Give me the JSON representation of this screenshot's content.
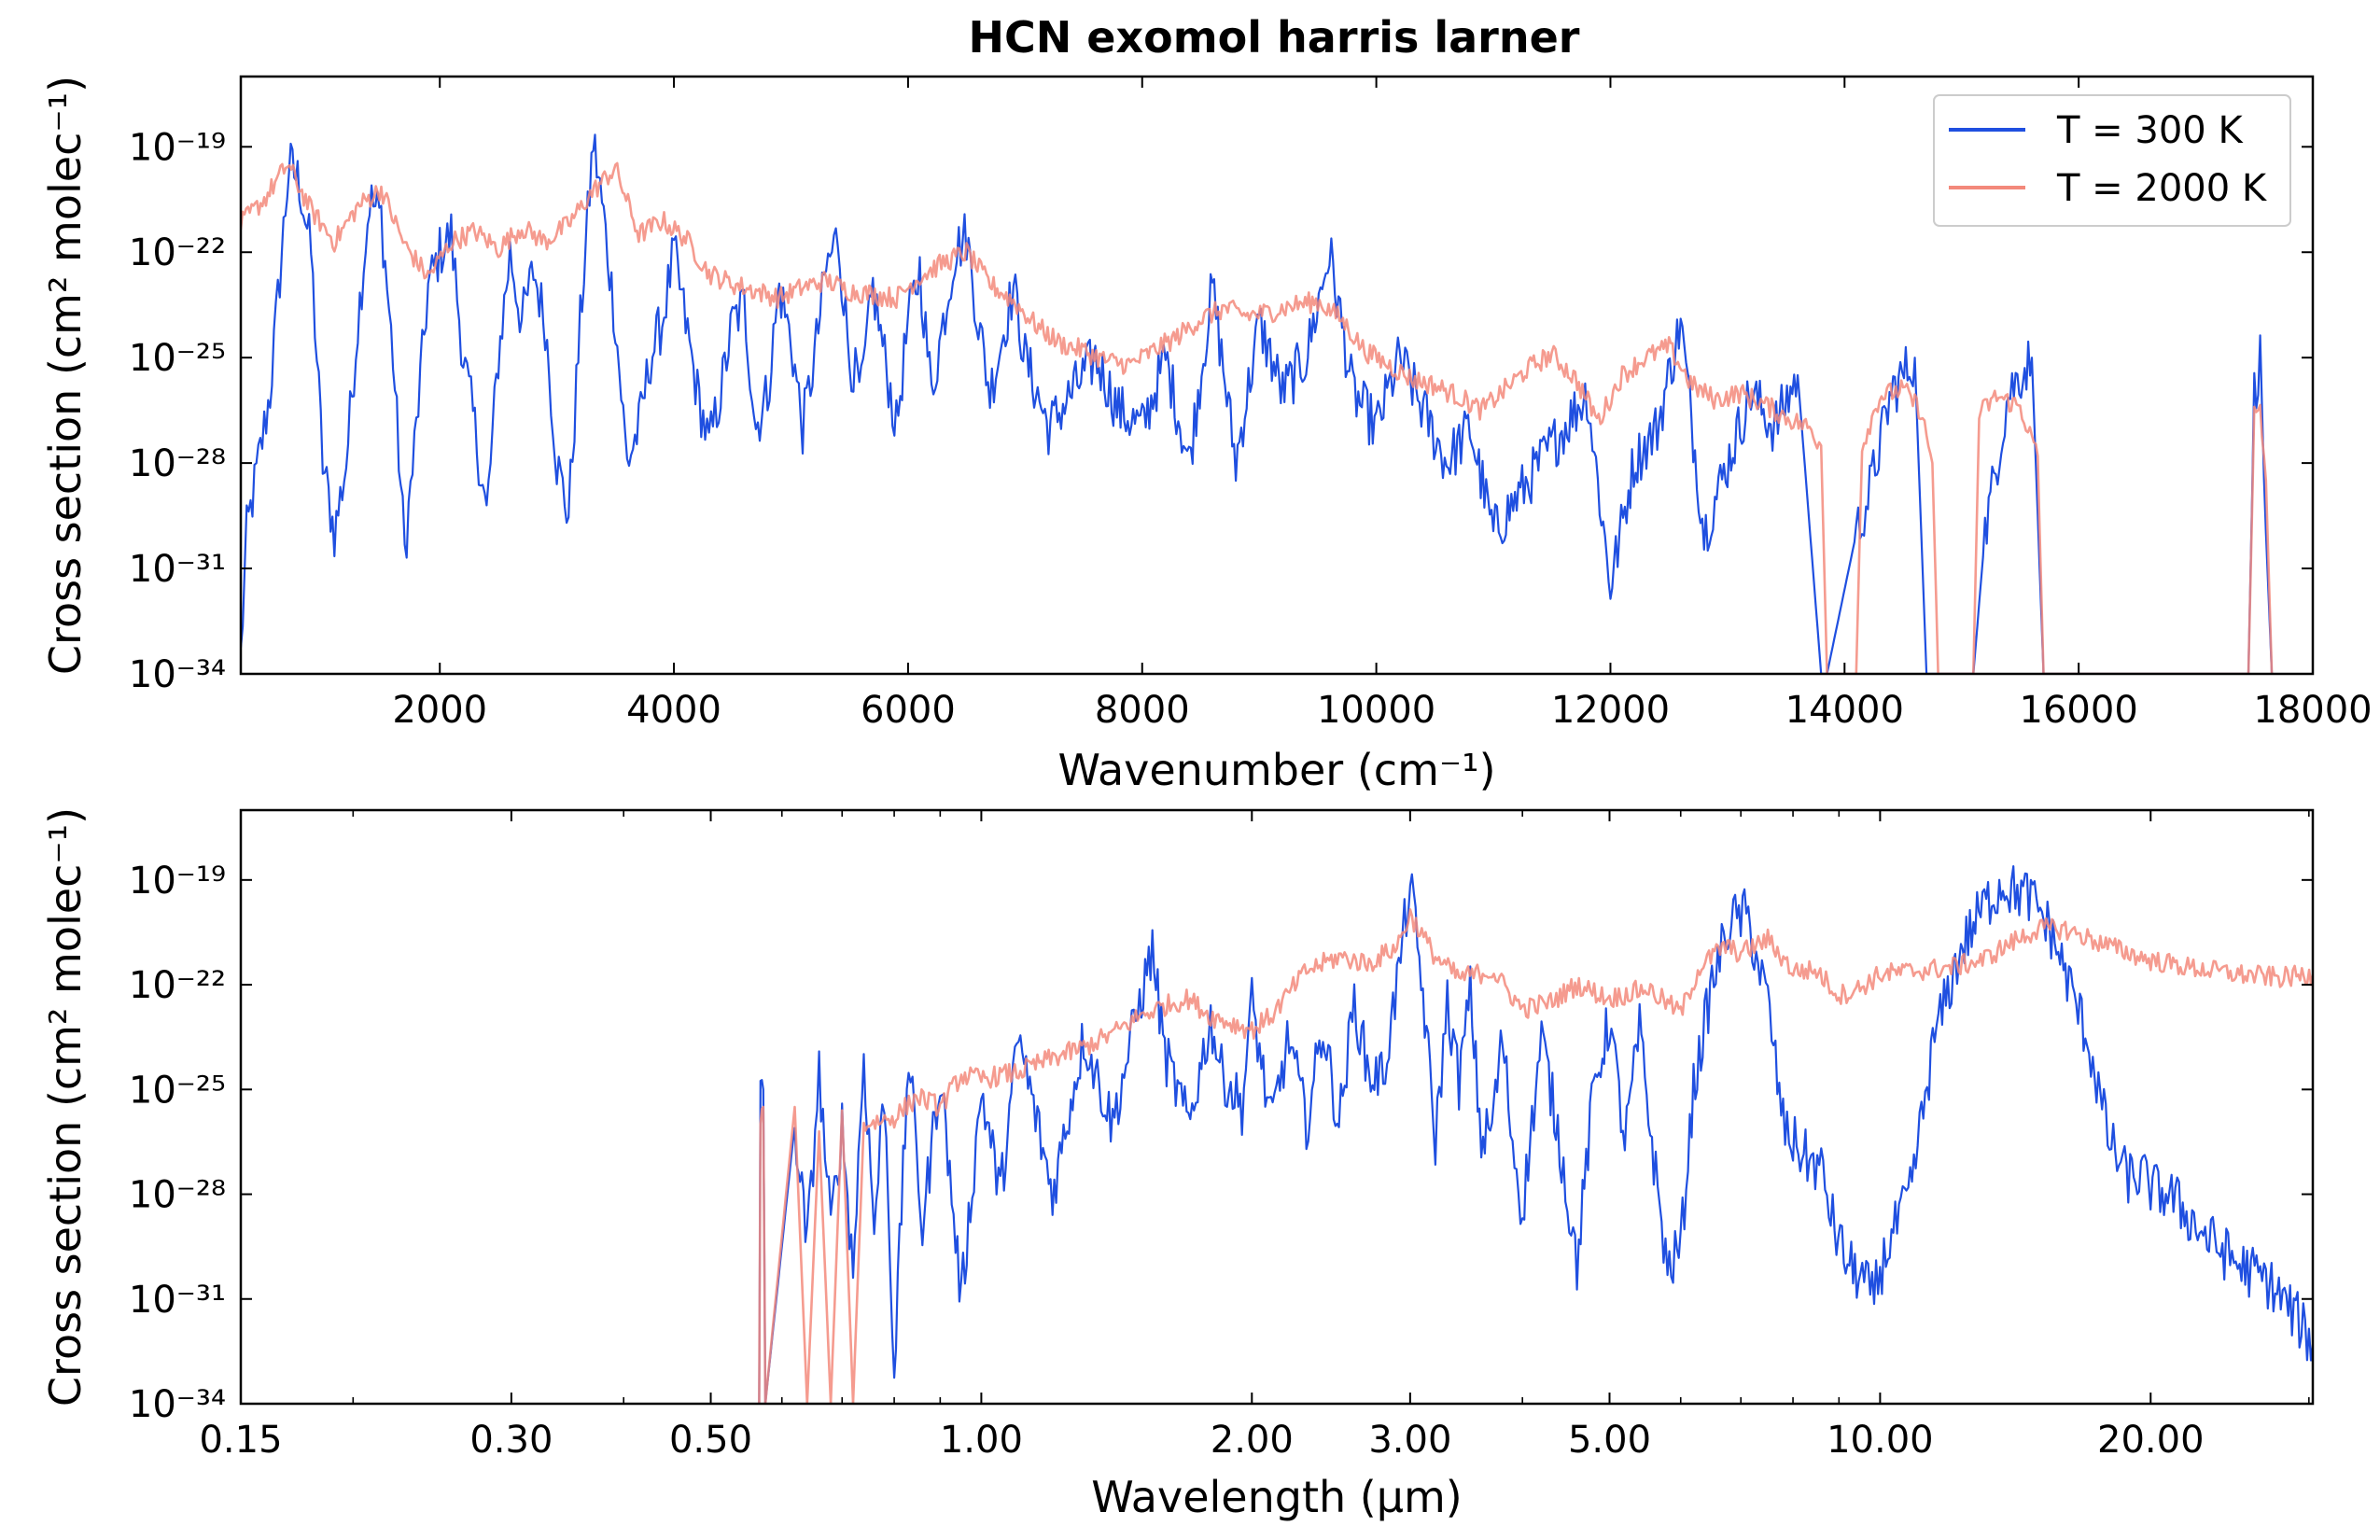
{
  "chart_data": [
    {
      "type": "line",
      "title": "HCN exomol harris larner",
      "xlabel": "Wavenumber (cm⁻¹)",
      "ylabel": "Cross section (cm² molec⁻¹)",
      "xscale": "linear",
      "yscale": "log",
      "xlim": [
        300,
        18000
      ],
      "ylim_exp": [
        -34,
        -17
      ],
      "x_ticks": [
        2000,
        4000,
        6000,
        8000,
        10000,
        12000,
        14000,
        16000,
        18000
      ],
      "x_tick_labels": [
        "2000",
        "4000",
        "6000",
        "8000",
        "10000",
        "12000",
        "14000",
        "16000",
        "18000"
      ],
      "y_ticks_exp": [
        -34,
        -31,
        -28,
        -25,
        -22,
        -19
      ],
      "y_tick_labels": [
        "10⁻³⁴",
        "10⁻³¹",
        "10⁻²⁸",
        "10⁻²⁵",
        "10⁻²²",
        "10⁻¹⁹"
      ],
      "legend": "top-right",
      "series": [
        {
          "name": "T = 300 K",
          "color": "#1f4fe0",
          "x": [
            300,
            350,
            450,
            550,
            650,
            712,
            800,
            900,
            1000,
            1100,
            1200,
            1300,
            1400,
            1500,
            1600,
            1700,
            1800,
            1900,
            2000,
            2097,
            2200,
            2300,
            2400,
            2500,
            2600,
            2700,
            2800,
            2900,
            3000,
            3100,
            3200,
            3311,
            3400,
            3500,
            3600,
            3700,
            3800,
            3900,
            4000,
            4100,
            4200,
            4300,
            4400,
            4500,
            4600,
            4700,
            4800,
            4900,
            5000,
            5100,
            5200,
            5300,
            5400,
            5500,
            5600,
            5700,
            5800,
            5900,
            6000,
            6100,
            6200,
            6300,
            6400,
            6500,
            6600,
            6700,
            6800,
            6900,
            7000,
            7200,
            7400,
            7600,
            7800,
            8000,
            8200,
            8400,
            8600,
            8800,
            9000,
            9200,
            9400,
            9600,
            9800,
            10000,
            10200,
            10400,
            10600,
            10800,
            11000,
            11200,
            11400,
            11600,
            11800,
            12000,
            12200,
            12400,
            12600,
            12800,
            13000,
            13200,
            13400,
            13600,
            13800,
            13850,
            14100,
            14200,
            14400,
            14600,
            14700,
            14800,
            15100,
            15200,
            15400,
            15600,
            15700,
            17450,
            17500,
            17550,
            17600,
            17650
          ],
          "y_exp": [
            -33.5,
            -30,
            -28,
            -26,
            -22,
            -19.5,
            -20,
            -22,
            -28,
            -30,
            -28,
            -24,
            -20.5,
            -21,
            -25,
            -30.5,
            -27,
            -23,
            -22,
            -21.5,
            -25,
            -27,
            -29.5,
            -25,
            -22,
            -24,
            -22.5,
            -24,
            -28,
            -29.5,
            -24,
            -18.8,
            -21,
            -24,
            -28,
            -27,
            -25,
            -24,
            -22,
            -24,
            -26,
            -27.5,
            -26,
            -24,
            -23.5,
            -27,
            -26,
            -23,
            -24.5,
            -27,
            -25,
            -22.5,
            -21.5,
            -25,
            -26,
            -23,
            -25,
            -27,
            -24,
            -22.5,
            -26,
            -24,
            -22,
            -21.5,
            -24,
            -26,
            -24.5,
            -23,
            -25,
            -27,
            -26,
            -25,
            -26.5,
            -27,
            -25,
            -28,
            -23,
            -28,
            -24,
            -26,
            -25,
            -22,
            -26,
            -27,
            -25,
            -26.5,
            -28,
            -27,
            -30,
            -29,
            -28,
            -27,
            -26,
            -31.5,
            -28,
            -27,
            -24,
            -30,
            -28,
            -26,
            -27,
            -25.5,
            -34,
            -34,
            -30,
            -29,
            -26,
            -25,
            -34,
            -34,
            -34,
            -30,
            -26,
            -25,
            -34,
            -34,
            -26,
            -25,
            -30,
            -34
          ]
        },
        {
          "name": "T = 2000 K",
          "color": "#f3897b",
          "x": [
            300,
            500,
            700,
            900,
            1100,
            1300,
            1500,
            1700,
            1900,
            2100,
            2300,
            2500,
            2700,
            2900,
            3100,
            3300,
            3500,
            3700,
            3900,
            4100,
            4300,
            4500,
            4700,
            4900,
            5100,
            5300,
            5500,
            5700,
            5900,
            6100,
            6300,
            6500,
            6700,
            6900,
            7100,
            7300,
            7500,
            7700,
            7900,
            8100,
            8300,
            8500,
            8700,
            8900,
            9100,
            9300,
            9500,
            9700,
            9900,
            10100,
            10300,
            10500,
            10700,
            10900,
            11100,
            11300,
            11500,
            11700,
            11900,
            12100,
            12300,
            12500,
            12700,
            12900,
            13100,
            13300,
            13500,
            13700,
            13800,
            13850,
            14100,
            14150,
            14300,
            14500,
            14650,
            14750,
            14800,
            15100,
            15150,
            15300,
            15500,
            15650,
            15700,
            17450,
            17500,
            17550,
            17600,
            17650
          ],
          "y_exp": [
            -21.2,
            -20.5,
            -19.5,
            -20.8,
            -21.7,
            -20.7,
            -20.2,
            -21.8,
            -22.7,
            -21.7,
            -21.4,
            -21.9,
            -21.3,
            -21.7,
            -21.2,
            -20.3,
            -19.6,
            -21.5,
            -21.1,
            -21.6,
            -22.6,
            -22.9,
            -23.1,
            -23.3,
            -23.0,
            -22.8,
            -23.1,
            -23.2,
            -23.3,
            -22.7,
            -22.3,
            -22.0,
            -22.9,
            -23.4,
            -24.1,
            -24.6,
            -24.8,
            -25.1,
            -25.2,
            -24.8,
            -24.4,
            -23.9,
            -23.6,
            -23.8,
            -23.7,
            -23.5,
            -23.4,
            -23.9,
            -24.8,
            -25.2,
            -25.6,
            -25.8,
            -26.1,
            -26.5,
            -25.9,
            -25.3,
            -24.9,
            -25.6,
            -26.8,
            -25.5,
            -25.0,
            -24.7,
            -25.8,
            -26.2,
            -26.0,
            -26.3,
            -26.7,
            -27.0,
            -27.5,
            -34,
            -34,
            -27.5,
            -26.1,
            -25.9,
            -26.5,
            -28.0,
            -34,
            -34,
            -26.6,
            -26.1,
            -26.4,
            -27.8,
            -34,
            -34,
            -26.6,
            -26.4,
            -28.5,
            -34
          ]
        }
      ]
    },
    {
      "type": "line",
      "xlabel": "Wavelength (μm)",
      "ylabel": "Cross section (cm² molec⁻¹)",
      "xscale": "log",
      "xlim": [
        0.15,
        30.3
      ],
      "ylim_exp": [
        -34,
        -17
      ],
      "x_ticks": [
        0.15,
        0.3,
        0.5,
        1.0,
        2.0,
        3.0,
        5.0,
        10.0,
        20.0
      ],
      "x_tick_labels": [
        "0.15",
        "0.30",
        "0.50",
        "1.00",
        "2.00",
        "3.00",
        "5.00",
        "10.00",
        "20.00"
      ],
      "y_ticks_exp": [
        -34,
        -31,
        -28,
        -25,
        -22,
        -19
      ],
      "y_tick_labels": [
        "10⁻³⁴",
        "10⁻³¹",
        "10⁻²⁸",
        "10⁻²⁵",
        "10⁻²²",
        "10⁻¹⁹"
      ],
      "series": [
        {
          "name": "T = 300 K",
          "color": "#1f4fe0",
          "x": [
            0.566,
            0.568,
            0.572,
            0.575,
            0.62,
            0.64,
            0.66,
            0.68,
            0.7,
            0.72,
            0.74,
            0.76,
            0.78,
            0.8,
            0.83,
            0.86,
            0.9,
            0.95,
            1.0,
            1.05,
            1.1,
            1.2,
            1.3,
            1.4,
            1.5,
            1.55,
            1.6,
            1.7,
            1.8,
            1.85,
            1.95,
            2.0,
            2.1,
            2.2,
            2.3,
            2.4,
            2.5,
            2.6,
            2.7,
            2.8,
            2.9,
            3.0,
            3.1,
            3.2,
            3.3,
            3.4,
            3.5,
            3.6,
            3.7,
            3.8,
            3.9,
            4.0,
            4.2,
            4.4,
            4.6,
            4.8,
            5.0,
            5.2,
            5.4,
            5.6,
            5.8,
            6.0,
            6.2,
            6.5,
            6.8,
            7.1,
            7.5,
            7.8,
            8.0,
            8.3,
            8.6,
            8.9,
            9.2,
            9.6,
            9.8,
            10.2,
            10.8,
            11.5,
            12.3,
            13.0,
            13.7,
            14.0,
            14.5,
            15.0,
            15.5,
            16.0,
            17.0,
            18.0,
            18.8,
            19.6,
            20.2,
            21.0,
            23.0,
            25.0,
            27.0,
            29.0,
            30.3
          ],
          "y_exp": [
            -34,
            -25.4,
            -25,
            -34,
            -26,
            -29.5,
            -24.5,
            -29,
            -26,
            -30.2,
            -24,
            -29,
            -25,
            -33,
            -24,
            -29,
            -24.5,
            -31,
            -25,
            -28,
            -23.5,
            -28,
            -23.5,
            -26,
            -22.5,
            -21,
            -24,
            -26,
            -23,
            -24.5,
            -25.5,
            -22.5,
            -26,
            -23.5,
            -26,
            -23.2,
            -26,
            -22.5,
            -24.6,
            -24.6,
            -22,
            -19.1,
            -22.3,
            -26.5,
            -22.5,
            -24.8,
            -22.2,
            -26.5,
            -26,
            -23.5,
            -26.5,
            -28.5,
            -23.5,
            -26.5,
            -30,
            -25,
            -23,
            -26.5,
            -23.3,
            -27,
            -30.2,
            -29.5,
            -25,
            -22,
            -20.2,
            -20.0,
            -22.5,
            -26,
            -26.5,
            -27,
            -27.3,
            -29,
            -30,
            -30.5,
            -31,
            -29.5,
            -28,
            -23.5,
            -21,
            -19.8,
            -19.1,
            -19.3,
            -19.4,
            -19.8,
            -20.5,
            -21.5,
            -23.5,
            -26.5,
            -27.5,
            -27.5,
            -27.9,
            -28,
            -29.2,
            -30.0,
            -30.5,
            -31.5,
            -32.3
          ]
        },
        {
          "name": "T = 2000 K",
          "color": "#f3897b",
          "x": [
            0.566,
            0.568,
            0.572,
            0.575,
            0.62,
            0.64,
            0.66,
            0.68,
            0.7,
            0.72,
            0.74,
            0.8,
            0.85,
            0.9,
            0.95,
            1.0,
            1.1,
            1.2,
            1.3,
            1.4,
            1.5,
            1.6,
            1.7,
            1.8,
            1.9,
            2.0,
            2.1,
            2.3,
            2.5,
            2.7,
            2.9,
            3.0,
            3.2,
            3.4,
            3.7,
            4.0,
            4.3,
            4.6,
            5.0,
            5.5,
            6.0,
            6.3,
            6.7,
            7.0,
            7.5,
            8.0,
            8.5,
            9.0,
            9.5,
            10.0,
            11.0,
            12.0,
            13.0,
            14.0,
            15.0,
            16.0,
            18.0,
            20.0,
            22.0,
            25.0,
            28.0,
            30.3
          ],
          "y_exp": [
            -34,
            -25.9,
            -25.5,
            -34,
            -25.5,
            -34,
            -26.2,
            -34,
            -25.6,
            -34,
            -26,
            -25.8,
            -25.2,
            -25.5,
            -24.6,
            -24.7,
            -24.5,
            -24.1,
            -23.8,
            -23.4,
            -22.9,
            -22.6,
            -22.4,
            -22.9,
            -23.1,
            -23.3,
            -22.9,
            -21.6,
            -21.2,
            -21.4,
            -20.9,
            -20.0,
            -21.2,
            -21.8,
            -21.6,
            -22.7,
            -22.5,
            -22.0,
            -22.4,
            -22.1,
            -22.8,
            -21.5,
            -20.9,
            -21.1,
            -20.7,
            -21.6,
            -21.6,
            -22.3,
            -22.1,
            -21.7,
            -21.6,
            -21.5,
            -21.3,
            -20.8,
            -20.4,
            -20.4,
            -20.9,
            -21.3,
            -21.5,
            -21.7,
            -21.8,
            -21.7
          ]
        }
      ]
    }
  ]
}
